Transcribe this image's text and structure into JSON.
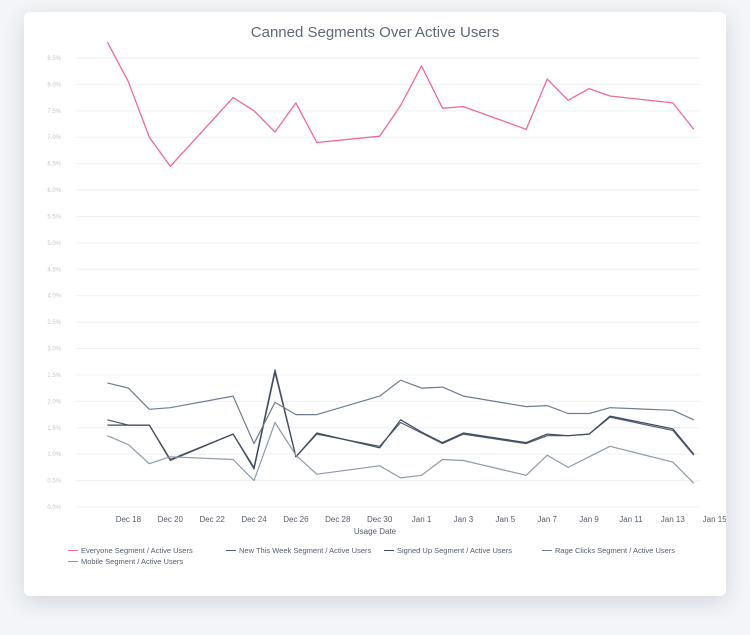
{
  "chart_data": {
    "type": "line",
    "title": "Canned Segments Over Active Users",
    "xlabel": "Usage Date",
    "ylabel": "",
    "x_ticks": [
      "Dec 18",
      "Dec 20",
      "Dec 22",
      "Dec 24",
      "Dec 26",
      "Dec 28",
      "Dec 30",
      "Jan 1",
      "Jan 3",
      "Jan 5",
      "Jan 7",
      "Jan 9",
      "Jan 11",
      "Jan 13",
      "Jan 15"
    ],
    "y_ticks": [
      "0.0%",
      "0.5%",
      "1.0%",
      "1.5%",
      "2.0%",
      "2.5%",
      "3.0%",
      "3.5%",
      "4.0%",
      "4.5%",
      "5.0%",
      "5.5%",
      "6.0%",
      "6.5%",
      "7.0%",
      "7.5%",
      "8.0%",
      "8.5%"
    ],
    "ylim": [
      0,
      8.5
    ],
    "grid": true,
    "legend_position": "bottom-left",
    "series": [
      {
        "name": "Everyone Segment / Active Users",
        "color": "#f0679e",
        "x": [
          "2022-12-17",
          "2022-12-18",
          "2022-12-19",
          "2022-12-20",
          "2022-12-23",
          "2022-12-24",
          "2022-12-25",
          "2022-12-26",
          "2022-12-27",
          "2022-12-30",
          "2022-12-31",
          "2023-01-01",
          "2023-01-02",
          "2023-01-03",
          "2023-01-06",
          "2023-01-07",
          "2023-01-08",
          "2023-01-09",
          "2023-01-10",
          "2023-01-13",
          "2023-01-14"
        ],
        "y": [
          8.8,
          8.05,
          7.0,
          6.45,
          7.75,
          7.5,
          7.1,
          7.65,
          6.9,
          7.02,
          7.6,
          8.35,
          7.55,
          7.58,
          7.15,
          8.1,
          7.7,
          7.92,
          7.78,
          7.65,
          7.15
        ]
      },
      {
        "name": "New This Week Segment / Active Users",
        "color": "#4e5d72",
        "x": [
          "2022-12-17",
          "2022-12-18",
          "2022-12-19",
          "2022-12-20",
          "2022-12-23",
          "2022-12-24",
          "2022-12-25",
          "2022-12-26",
          "2022-12-27",
          "2022-12-30",
          "2022-12-31",
          "2023-01-01",
          "2023-01-02",
          "2023-01-03",
          "2023-01-06",
          "2023-01-07",
          "2023-01-08",
          "2023-01-09",
          "2023-01-10",
          "2023-01-13",
          "2023-01-14"
        ],
        "y": [
          1.65,
          1.55,
          1.55,
          0.88,
          1.38,
          0.75,
          2.6,
          0.95,
          1.38,
          1.15,
          1.6,
          1.4,
          1.2,
          1.38,
          1.2,
          1.35,
          1.35,
          1.38,
          1.7,
          1.45,
          0.98
        ]
      },
      {
        "name": "Signed Up Segment / Active Users",
        "color": "#3f4a5a",
        "x": [
          "2022-12-17",
          "2022-12-18",
          "2022-12-19",
          "2022-12-20",
          "2022-12-23",
          "2022-12-24",
          "2022-12-25",
          "2022-12-26",
          "2022-12-27",
          "2022-12-30",
          "2022-12-31",
          "2023-01-01",
          "2023-01-02",
          "2023-01-03",
          "2023-01-06",
          "2023-01-07",
          "2023-01-08",
          "2023-01-09",
          "2023-01-10",
          "2023-01-13",
          "2023-01-14"
        ],
        "y": [
          1.55,
          1.55,
          1.55,
          0.9,
          1.38,
          0.72,
          2.55,
          0.95,
          1.4,
          1.12,
          1.65,
          1.42,
          1.22,
          1.4,
          1.22,
          1.38,
          1.35,
          1.38,
          1.72,
          1.48,
          1.0
        ]
      },
      {
        "name": "Rage Clicks Segment / Active Users",
        "color": "#6f7d8e",
        "x": [
          "2022-12-17",
          "2022-12-18",
          "2022-12-19",
          "2022-12-20",
          "2022-12-23",
          "2022-12-24",
          "2022-12-25",
          "2022-12-26",
          "2022-12-27",
          "2022-12-30",
          "2022-12-31",
          "2023-01-01",
          "2023-01-02",
          "2023-01-03",
          "2023-01-06",
          "2023-01-07",
          "2023-01-08",
          "2023-01-09",
          "2023-01-10",
          "2023-01-13",
          "2023-01-14"
        ],
        "y": [
          2.35,
          2.25,
          1.85,
          1.88,
          2.1,
          1.2,
          1.98,
          1.75,
          1.75,
          2.1,
          2.4,
          2.25,
          2.27,
          2.1,
          1.9,
          1.92,
          1.77,
          1.77,
          1.88,
          1.83,
          1.65
        ]
      },
      {
        "name": "Mobile Segment / Active Users",
        "color": "#8e9aa8",
        "x": [
          "2022-12-17",
          "2022-12-18",
          "2022-12-19",
          "2022-12-20",
          "2022-12-23",
          "2022-12-24",
          "2022-12-25",
          "2022-12-26",
          "2022-12-27",
          "2022-12-30",
          "2022-12-31",
          "2023-01-01",
          "2023-01-02",
          "2023-01-03",
          "2023-01-06",
          "2023-01-07",
          "2023-01-08",
          "2023-01-09",
          "2023-01-10",
          "2023-01-13",
          "2023-01-14"
        ],
        "y": [
          1.35,
          1.18,
          0.82,
          0.95,
          0.9,
          0.5,
          1.6,
          0.98,
          0.62,
          0.78,
          0.55,
          0.6,
          0.9,
          0.88,
          0.6,
          0.98,
          0.75,
          0.95,
          1.15,
          0.85,
          0.45
        ]
      }
    ]
  }
}
